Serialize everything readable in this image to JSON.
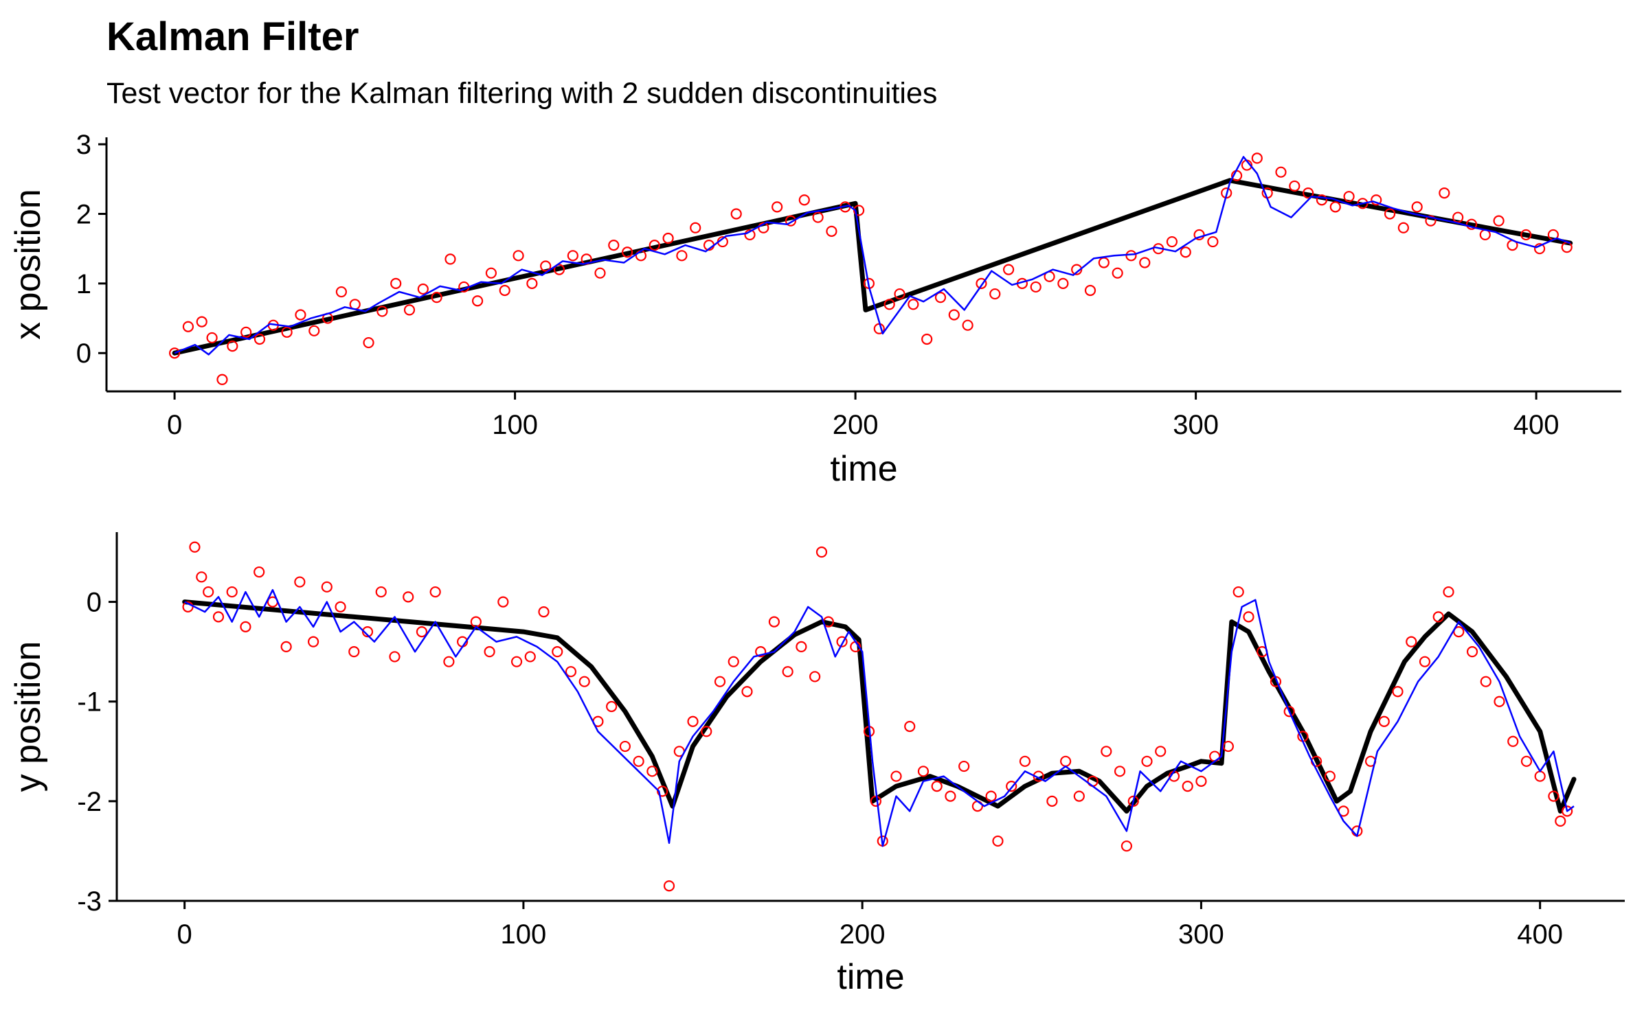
{
  "title": "Kalman Filter",
  "subtitle": "Test vector for the Kalman filtering with 2 sudden discontinuities",
  "colors": {
    "truth": "#000000",
    "estimate": "#0000FF",
    "measurement": "#FF0000",
    "axis": "#000000"
  },
  "chart_data": [
    {
      "type": "line",
      "xlabel": "time",
      "ylabel": "x position",
      "xlim": [
        -20,
        425
      ],
      "ylim": [
        -0.55,
        3.1
      ],
      "xticks": [
        0,
        100,
        200,
        300,
        400
      ],
      "yticks": [
        0,
        1,
        2,
        3
      ],
      "xtick_labels": [
        "0",
        "100",
        "200",
        "300",
        "400"
      ],
      "ytick_labels": [
        "0",
        "1",
        "2",
        "3"
      ],
      "grid": false,
      "legend": "none",
      "series": [
        {
          "role": "truth",
          "style": "thick black line",
          "x": [
            0,
            200,
            203,
            310,
            410
          ],
          "y": [
            0,
            2.15,
            0.62,
            2.48,
            1.58
          ]
        },
        {
          "role": "estimate",
          "style": "thin blue line",
          "x": [
            0,
            6,
            10,
            16,
            22,
            28,
            34,
            40,
            46,
            50,
            56,
            60,
            66,
            72,
            78,
            84,
            90,
            96,
            102,
            108,
            114,
            120,
            126,
            132,
            138,
            144,
            150,
            156,
            162,
            168,
            174,
            180,
            186,
            192,
            198,
            200,
            204,
            208,
            212,
            216,
            220,
            226,
            232,
            236,
            240,
            246,
            252,
            258,
            264,
            270,
            276,
            282,
            288,
            294,
            300,
            306,
            310,
            314,
            318,
            322,
            328,
            334,
            340,
            346,
            352,
            358,
            364,
            370,
            376,
            382,
            388,
            394,
            400,
            406,
            410
          ],
          "y": [
            0,
            0.12,
            -0.02,
            0.26,
            0.2,
            0.42,
            0.38,
            0.5,
            0.58,
            0.66,
            0.6,
            0.72,
            0.88,
            0.8,
            0.96,
            0.9,
            1.02,
            1.0,
            1.2,
            1.12,
            1.32,
            1.28,
            1.34,
            1.3,
            1.5,
            1.42,
            1.55,
            1.46,
            1.68,
            1.72,
            1.88,
            1.85,
            2.02,
            2.06,
            2.12,
            2.05,
            0.95,
            0.28,
            0.55,
            0.82,
            0.74,
            0.92,
            0.62,
            0.9,
            1.18,
            0.98,
            1.06,
            1.2,
            1.12,
            1.36,
            1.4,
            1.42,
            1.52,
            1.46,
            1.65,
            1.74,
            2.45,
            2.82,
            2.58,
            2.1,
            1.95,
            2.25,
            2.22,
            2.12,
            2.18,
            2.08,
            2.0,
            1.94,
            1.88,
            1.8,
            1.74,
            1.6,
            1.52,
            1.65,
            1.58
          ]
        },
        {
          "role": "measurement",
          "style": "red open circles",
          "x": [
            0,
            4,
            8,
            11,
            14,
            17,
            21,
            25,
            29,
            33,
            37,
            41,
            45,
            49,
            53,
            57,
            61,
            65,
            69,
            73,
            77,
            81,
            85,
            89,
            93,
            97,
            101,
            105,
            109,
            113,
            117,
            121,
            125,
            129,
            133,
            137,
            141,
            145,
            149,
            153,
            157,
            161,
            165,
            169,
            173,
            177,
            181,
            185,
            189,
            193,
            197,
            201,
            204,
            207,
            210,
            213,
            217,
            221,
            225,
            229,
            233,
            237,
            241,
            245,
            249,
            253,
            257,
            261,
            265,
            269,
            273,
            277,
            281,
            285,
            289,
            293,
            297,
            301,
            305,
            309,
            312,
            315,
            318,
            321,
            325,
            329,
            333,
            337,
            341,
            345,
            349,
            353,
            357,
            361,
            365,
            369,
            373,
            377,
            381,
            385,
            389,
            393,
            397,
            401,
            405,
            409
          ],
          "y": [
            0,
            0.38,
            0.45,
            0.22,
            -0.38,
            0.1,
            0.3,
            0.2,
            0.4,
            0.3,
            0.55,
            0.32,
            0.5,
            0.88,
            0.7,
            0.15,
            0.6,
            1.0,
            0.62,
            0.92,
            0.8,
            1.35,
            0.95,
            0.75,
            1.15,
            0.9,
            1.4,
            1.0,
            1.25,
            1.2,
            1.4,
            1.35,
            1.15,
            1.55,
            1.45,
            1.4,
            1.55,
            1.65,
            1.4,
            1.8,
            1.55,
            1.6,
            2.0,
            1.7,
            1.8,
            2.1,
            1.9,
            2.2,
            1.95,
            1.75,
            2.1,
            2.05,
            1.0,
            0.35,
            0.7,
            0.85,
            0.7,
            0.2,
            0.8,
            0.55,
            0.4,
            1.0,
            0.85,
            1.2,
            1.0,
            0.95,
            1.1,
            1.0,
            1.2,
            0.9,
            1.3,
            1.15,
            1.4,
            1.3,
            1.5,
            1.6,
            1.45,
            1.7,
            1.6,
            2.3,
            2.55,
            2.7,
            2.8,
            2.3,
            2.6,
            2.4,
            2.3,
            2.2,
            2.1,
            2.25,
            2.15,
            2.2,
            2.0,
            1.8,
            2.1,
            1.9,
            2.3,
            1.95,
            1.85,
            1.7,
            1.9,
            1.55,
            1.7,
            1.5,
            1.7,
            1.52
          ]
        }
      ]
    },
    {
      "type": "line",
      "xlabel": "time",
      "ylabel": "y position",
      "xlim": [
        -20,
        425
      ],
      "ylim": [
        -3.0,
        0.7
      ],
      "xticks": [
        0,
        100,
        200,
        300,
        400
      ],
      "yticks": [
        -3,
        -2,
        -1,
        0
      ],
      "xtick_labels": [
        "0",
        "100",
        "200",
        "300",
        "400"
      ],
      "ytick_labels": [
        "-3",
        "-2",
        "-1",
        "0"
      ],
      "grid": false,
      "legend": "none",
      "series": [
        {
          "role": "truth",
          "style": "thick black line",
          "x": [
            0,
            50,
            100,
            110,
            120,
            130,
            138,
            144,
            150,
            160,
            170,
            180,
            188,
            195,
            199,
            203,
            210,
            220,
            228,
            234,
            240,
            248,
            256,
            264,
            270,
            278,
            284,
            290,
            296,
            300,
            306,
            309,
            314,
            320,
            330,
            340,
            344,
            350,
            360,
            366,
            373,
            380,
            390,
            400,
            406,
            410
          ],
          "y": [
            0,
            -0.15,
            -0.3,
            -0.36,
            -0.65,
            -1.1,
            -1.55,
            -2.05,
            -1.45,
            -0.95,
            -0.6,
            -0.33,
            -0.2,
            -0.25,
            -0.38,
            -2.0,
            -1.85,
            -1.75,
            -1.85,
            -1.95,
            -2.05,
            -1.85,
            -1.72,
            -1.7,
            -1.8,
            -2.1,
            -1.85,
            -1.72,
            -1.65,
            -1.6,
            -1.62,
            -0.2,
            -0.3,
            -0.7,
            -1.3,
            -2.0,
            -1.9,
            -1.3,
            -0.6,
            -0.35,
            -0.12,
            -0.3,
            -0.75,
            -1.3,
            -2.1,
            -1.78
          ]
        },
        {
          "role": "estimate",
          "style": "thin blue line",
          "x": [
            0,
            6,
            10,
            14,
            18,
            22,
            26,
            30,
            34,
            38,
            42,
            46,
            50,
            56,
            62,
            68,
            74,
            80,
            86,
            92,
            98,
            104,
            110,
            116,
            122,
            128,
            134,
            140,
            143,
            146,
            150,
            156,
            162,
            168,
            174,
            180,
            184,
            188,
            192,
            196,
            200,
            203,
            206,
            210,
            214,
            218,
            224,
            230,
            236,
            242,
            248,
            254,
            260,
            266,
            272,
            278,
            282,
            288,
            294,
            300,
            306,
            309,
            312,
            316,
            320,
            326,
            332,
            338,
            342,
            346,
            352,
            358,
            364,
            370,
            376,
            382,
            388,
            394,
            400,
            404,
            408,
            410
          ],
          "y": [
            0,
            -0.1,
            0.05,
            -0.2,
            0.1,
            -0.15,
            0.12,
            -0.2,
            -0.05,
            -0.25,
            0.0,
            -0.3,
            -0.2,
            -0.4,
            -0.15,
            -0.5,
            -0.2,
            -0.55,
            -0.25,
            -0.4,
            -0.35,
            -0.45,
            -0.6,
            -0.9,
            -1.3,
            -1.5,
            -1.7,
            -1.9,
            -2.42,
            -1.6,
            -1.35,
            -1.1,
            -0.8,
            -0.55,
            -0.5,
            -0.3,
            -0.05,
            -0.15,
            -0.55,
            -0.3,
            -0.5,
            -1.6,
            -2.45,
            -1.95,
            -2.1,
            -1.8,
            -1.75,
            -1.9,
            -2.05,
            -1.95,
            -1.7,
            -1.8,
            -1.65,
            -1.8,
            -1.95,
            -2.3,
            -1.7,
            -1.9,
            -1.6,
            -1.7,
            -1.55,
            -0.5,
            -0.05,
            0.02,
            -0.6,
            -1.1,
            -1.55,
            -1.95,
            -2.2,
            -2.35,
            -1.5,
            -1.2,
            -0.8,
            -0.55,
            -0.2,
            -0.45,
            -0.8,
            -1.35,
            -1.7,
            -1.5,
            -2.1,
            -2.05
          ]
        },
        {
          "role": "measurement",
          "style": "red open circles",
          "x": [
            1,
            3,
            5,
            7,
            10,
            14,
            18,
            22,
            26,
            30,
            34,
            38,
            42,
            46,
            50,
            54,
            58,
            62,
            66,
            70,
            74,
            78,
            82,
            86,
            90,
            94,
            98,
            102,
            106,
            110,
            114,
            118,
            122,
            126,
            130,
            134,
            138,
            141,
            143,
            146,
            150,
            154,
            158,
            162,
            166,
            170,
            174,
            178,
            182,
            186,
            188,
            190,
            194,
            198,
            202,
            204,
            206,
            210,
            214,
            218,
            222,
            226,
            230,
            234,
            238,
            240,
            244,
            248,
            252,
            256,
            260,
            264,
            268,
            272,
            276,
            278,
            280,
            284,
            288,
            292,
            296,
            300,
            304,
            308,
            311,
            314,
            318,
            322,
            326,
            330,
            334,
            338,
            342,
            346,
            350,
            354,
            358,
            362,
            366,
            370,
            373,
            376,
            380,
            384,
            388,
            392,
            396,
            400,
            404,
            406,
            408
          ],
          "y": [
            -0.05,
            0.55,
            0.25,
            0.1,
            -0.15,
            0.1,
            -0.25,
            0.3,
            0.0,
            -0.45,
            0.2,
            -0.4,
            0.15,
            -0.05,
            -0.5,
            -0.3,
            0.1,
            -0.55,
            0.05,
            -0.3,
            0.1,
            -0.6,
            -0.4,
            -0.2,
            -0.5,
            0.0,
            -0.6,
            -0.55,
            -0.1,
            -0.5,
            -0.7,
            -0.8,
            -1.2,
            -1.05,
            -1.45,
            -1.6,
            -1.7,
            -1.9,
            -2.85,
            -1.5,
            -1.2,
            -1.3,
            -0.8,
            -0.6,
            -0.9,
            -0.5,
            -0.2,
            -0.7,
            -0.45,
            -0.75,
            0.5,
            -0.2,
            -0.4,
            -0.45,
            -1.3,
            -2.0,
            -2.4,
            -1.75,
            -1.25,
            -1.7,
            -1.85,
            -1.95,
            -1.65,
            -2.05,
            -1.95,
            -2.4,
            -1.85,
            -1.6,
            -1.75,
            -2.0,
            -1.6,
            -1.95,
            -1.8,
            -1.5,
            -1.7,
            -2.45,
            -2.0,
            -1.6,
            -1.5,
            -1.75,
            -1.85,
            -1.8,
            -1.55,
            -1.45,
            0.1,
            -0.15,
            -0.5,
            -0.8,
            -1.1,
            -1.35,
            -1.6,
            -1.75,
            -2.1,
            -2.3,
            -1.6,
            -1.2,
            -0.9,
            -0.4,
            -0.6,
            -0.15,
            0.1,
            -0.3,
            -0.5,
            -0.8,
            -1.0,
            -1.4,
            -1.6,
            -1.75,
            -1.95,
            -2.2,
            -2.1
          ]
        }
      ]
    }
  ]
}
